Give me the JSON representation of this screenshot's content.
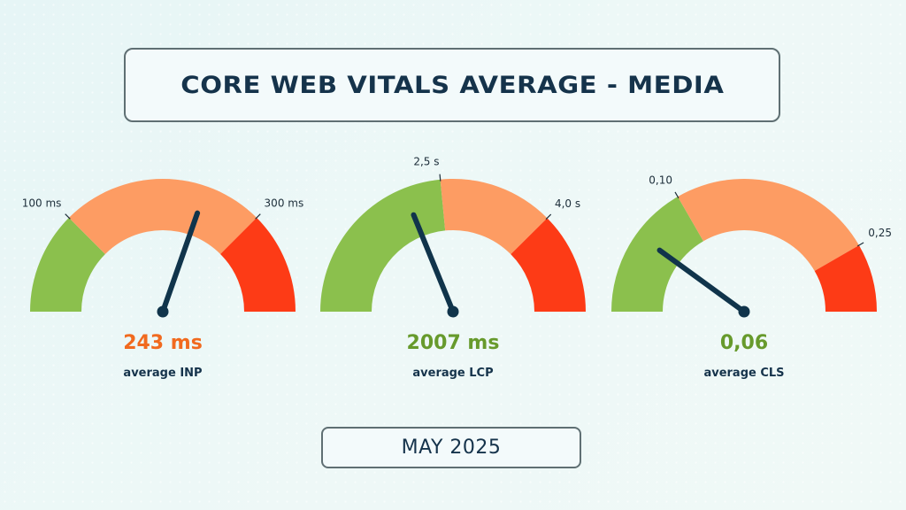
{
  "title": "CORE WEB VITALS AVERAGE - MEDIA",
  "period": "MAY 2025",
  "colors": {
    "good": "#8bc04d",
    "needs_improvement": "#fd9c63",
    "poor": "#fd3b16",
    "needle": "#10344b",
    "value_orange": "#f16a1f",
    "value_green": "#679a2c",
    "text_dark": "#15334b"
  },
  "chart_data": [
    {
      "type": "gauge",
      "metric": "INP",
      "label": "average INP",
      "value_text": "243 ms",
      "value": 243,
      "unit": "ms",
      "range": [
        0,
        400
      ],
      "thresholds": [
        100,
        300
      ],
      "threshold_labels": [
        "100 ms",
        "300 ms"
      ],
      "status": "needs_improvement"
    },
    {
      "type": "gauge",
      "metric": "LCP",
      "label": "average LCP",
      "value_text": "2007 ms",
      "value": 2.007,
      "unit": "s",
      "range": [
        0,
        5.325
      ],
      "thresholds": [
        2.5,
        4.0
      ],
      "threshold_labels": [
        "2,5 s",
        "4,0 s"
      ],
      "status": "good"
    },
    {
      "type": "gauge",
      "metric": "CLS",
      "label": "average CLS",
      "value_text": "0,06",
      "value": 0.06,
      "unit": "",
      "range": [
        0,
        0.3
      ],
      "thresholds": [
        0.1,
        0.25
      ],
      "threshold_labels": [
        "0,10",
        "0,25"
      ],
      "status": "good"
    }
  ]
}
